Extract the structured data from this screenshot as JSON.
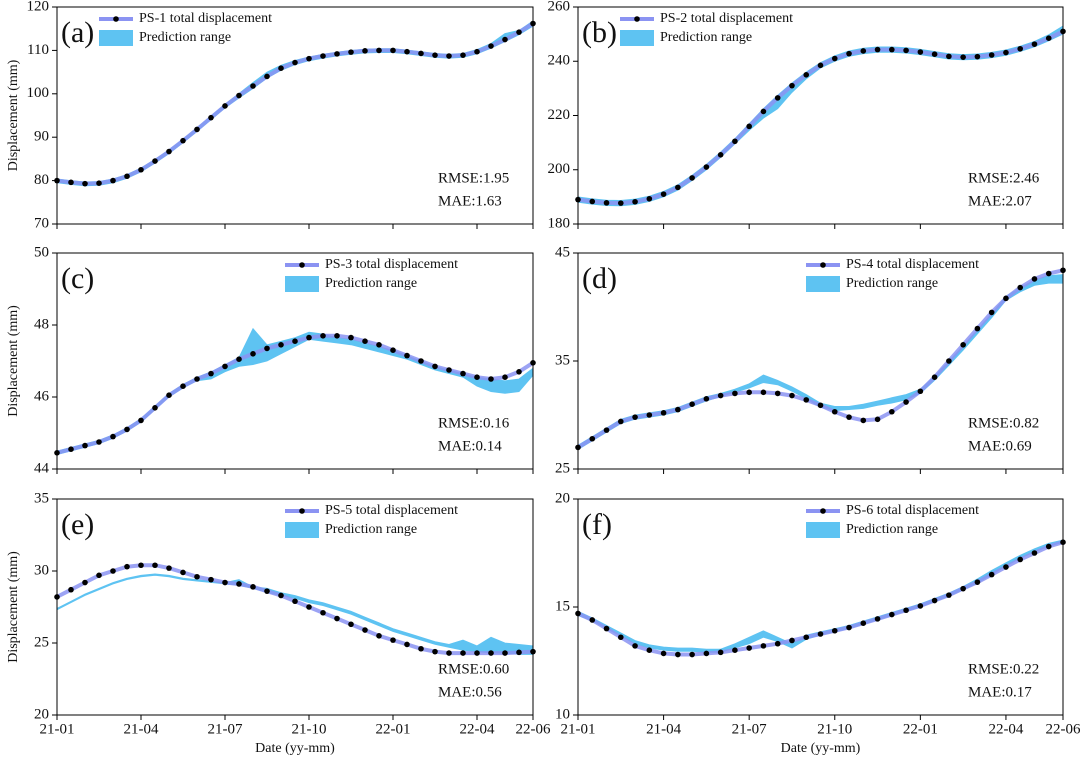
{
  "chart_data": [
    {
      "type": "line",
      "panel_label": "(a)",
      "ylabel": "Displacement (mm)",
      "legend": "upper left",
      "ylim": [
        70,
        120
      ],
      "yticks": [
        70,
        80,
        90,
        100,
        110,
        120
      ],
      "xlim": [
        0,
        17
      ],
      "xticks": [
        0,
        3,
        6,
        9,
        12,
        15,
        17
      ],
      "x": [
        0,
        0.5,
        1,
        1.5,
        2,
        2.5,
        3,
        3.5,
        4,
        4.5,
        5,
        5.5,
        6,
        6.5,
        7,
        7.5,
        8,
        8.5,
        9,
        9.5,
        10,
        10.5,
        11,
        11.5,
        12,
        12.5,
        13,
        13.5,
        14,
        14.5,
        15,
        15.5,
        16,
        16.5,
        17
      ],
      "series": [
        {
          "name": "PS-1 total displacement",
          "color": "#8b93f2",
          "values": [
            80,
            79.6,
            79.3,
            79.4,
            80,
            81,
            82.5,
            84.5,
            86.7,
            89.2,
            91.8,
            94.5,
            97.2,
            99.6,
            101.8,
            104,
            105.9,
            107.2,
            108.1,
            108.7,
            109.2,
            109.6,
            109.9,
            110,
            110,
            109.7,
            109.3,
            108.9,
            108.7,
            108.9,
            109.7,
            111,
            112.5,
            114.2,
            116.2
          ]
        }
      ],
      "range": {
        "name": "Prediction range",
        "color": "#5ec3f2",
        "lower": [
          79.5,
          79.1,
          78.8,
          78.9,
          79.5,
          80.5,
          82,
          84,
          86.2,
          88.7,
          91.3,
          94,
          96.7,
          99,
          101.2,
          103.6,
          105.4,
          106.7,
          107.6,
          108.2,
          108.7,
          109.1,
          109.4,
          109.5,
          109.5,
          109.2,
          108.8,
          108.4,
          108.2,
          108.4,
          109.2,
          110.5,
          112,
          113.6,
          115.6
        ],
        "upper": [
          80.4,
          80,
          79.7,
          79.8,
          80.4,
          81.4,
          82.9,
          84.9,
          87.1,
          89.6,
          92.2,
          94.9,
          97.6,
          100.1,
          102.6,
          105,
          106.6,
          107.7,
          108.5,
          109.1,
          109.6,
          110,
          110.3,
          110.4,
          110.4,
          110.1,
          109.7,
          109.3,
          109.1,
          109.3,
          110.2,
          111.6,
          113.9,
          114.6,
          116.8
        ]
      },
      "annotations": [
        "RMSE:1.95",
        "MAE:1.63"
      ]
    },
    {
      "type": "line",
      "panel_label": "(b)",
      "legend": "upper left",
      "ylim": [
        180,
        260
      ],
      "yticks": [
        180,
        200,
        220,
        240,
        260
      ],
      "xlim": [
        0,
        17
      ],
      "xticks": [
        0,
        3,
        6,
        9,
        12,
        15,
        17
      ],
      "x": [
        0,
        0.5,
        1,
        1.5,
        2,
        2.5,
        3,
        3.5,
        4,
        4.5,
        5,
        5.5,
        6,
        6.5,
        7,
        7.5,
        8,
        8.5,
        9,
        9.5,
        10,
        10.5,
        11,
        11.5,
        12,
        12.5,
        13,
        13.5,
        14,
        14.5,
        15,
        15.5,
        16,
        16.5,
        17
      ],
      "series": [
        {
          "name": "PS-2 total displacement",
          "color": "#8b93f2",
          "values": [
            189,
            188.3,
            187.8,
            187.7,
            188.2,
            189.3,
            191,
            193.5,
            197,
            201,
            205.5,
            210.5,
            216,
            221.5,
            226.5,
            231,
            235,
            238.5,
            241,
            242.8,
            243.8,
            244.3,
            244.3,
            244,
            243.4,
            242.6,
            241.8,
            241.5,
            241.7,
            242.3,
            243.2,
            244.6,
            246.3,
            248.5,
            251
          ]
        }
      ],
      "range": {
        "name": "Prediction range",
        "color": "#5ec3f2",
        "lower": [
          188,
          187.3,
          186.8,
          186.7,
          187.2,
          188.3,
          190,
          192.5,
          196,
          200,
          204.5,
          209.5,
          214.5,
          219,
          222.5,
          228.5,
          233.5,
          237.5,
          240,
          241.8,
          242.8,
          243.3,
          243.3,
          243,
          242.4,
          241.6,
          240.8,
          240.5,
          240.7,
          241.3,
          242.2,
          243.6,
          245.3,
          247.5,
          250
        ],
        "upper": [
          190,
          189.3,
          188.8,
          188.7,
          189.2,
          190.3,
          192,
          194.5,
          198,
          202,
          206.5,
          211.5,
          217,
          222.5,
          227.5,
          232,
          236,
          239.5,
          242,
          243.8,
          244.8,
          245.3,
          245.3,
          245,
          244.4,
          243.6,
          242.8,
          242.5,
          242.7,
          243.3,
          244.2,
          245.6,
          247.3,
          249.8,
          253
        ]
      },
      "annotations": [
        "RMSE:2.46",
        "MAE:2.07"
      ]
    },
    {
      "type": "line",
      "panel_label": "(c)",
      "ylabel": "Displacement (mm)",
      "legend": "upper center",
      "ylim": [
        44,
        50
      ],
      "yticks": [
        44,
        46,
        48,
        50
      ],
      "xlim": [
        0,
        17
      ],
      "xticks": [
        0,
        3,
        6,
        9,
        12,
        15,
        17
      ],
      "x": [
        0,
        0.5,
        1,
        1.5,
        2,
        2.5,
        3,
        3.5,
        4,
        4.5,
        5,
        5.5,
        6,
        6.5,
        7,
        7.5,
        8,
        8.5,
        9,
        9.5,
        10,
        10.5,
        11,
        11.5,
        12,
        12.5,
        13,
        13.5,
        14,
        14.5,
        15,
        15.5,
        16,
        16.5,
        17
      ],
      "series": [
        {
          "name": "PS-3 total displacement",
          "color": "#8b93f2",
          "values": [
            44.45,
            44.55,
            44.65,
            44.75,
            44.9,
            45.1,
            45.35,
            45.7,
            46.05,
            46.3,
            46.5,
            46.65,
            46.85,
            47.05,
            47.2,
            47.35,
            47.45,
            47.55,
            47.65,
            47.7,
            47.7,
            47.65,
            47.55,
            47.45,
            47.3,
            47.15,
            47,
            46.85,
            46.75,
            46.65,
            46.55,
            46.5,
            46.55,
            46.7,
            46.95
          ]
        }
      ],
      "range": {
        "name": "Prediction range",
        "color": "#5ec3f2",
        "lower": [
          44.4,
          44.5,
          44.6,
          44.7,
          44.85,
          45.05,
          45.3,
          45.65,
          46,
          46.25,
          46.45,
          46.5,
          46.7,
          46.85,
          46.9,
          47,
          47.2,
          47.4,
          47.6,
          47.55,
          47.5,
          47.45,
          47.35,
          47.25,
          47.15,
          47.05,
          46.9,
          46.75,
          46.65,
          46.55,
          46.3,
          46.15,
          46.1,
          46.15,
          46.6
        ],
        "upper": [
          44.5,
          44.6,
          44.7,
          44.8,
          44.95,
          45.15,
          45.4,
          45.75,
          46.1,
          46.35,
          46.55,
          46.7,
          46.9,
          47.1,
          47.9,
          47.45,
          47.55,
          47.65,
          47.8,
          47.75,
          47.65,
          47.6,
          47.5,
          47.4,
          47.3,
          47.15,
          47,
          46.85,
          46.75,
          46.65,
          46.55,
          46.5,
          46.45,
          46.5,
          46.8
        ]
      },
      "annotations": [
        "RMSE:0.16",
        "MAE:0.14"
      ]
    },
    {
      "type": "line",
      "panel_label": "(d)",
      "legend": "upper center",
      "ylim": [
        25,
        45
      ],
      "yticks": [
        25,
        35,
        45
      ],
      "xlim": [
        0,
        17
      ],
      "xticks": [
        0,
        3,
        6,
        9,
        12,
        15,
        17
      ],
      "x": [
        0,
        0.5,
        1,
        1.5,
        2,
        2.5,
        3,
        3.5,
        4,
        4.5,
        5,
        5.5,
        6,
        6.5,
        7,
        7.5,
        8,
        8.5,
        9,
        9.5,
        10,
        10.5,
        11,
        11.5,
        12,
        12.5,
        13,
        13.5,
        14,
        14.5,
        15,
        15.5,
        16,
        16.5,
        17
      ],
      "series": [
        {
          "name": "PS-4 total displacement",
          "color": "#8b93f2",
          "values": [
            27,
            27.8,
            28.6,
            29.4,
            29.8,
            30,
            30.2,
            30.5,
            31,
            31.5,
            31.8,
            32,
            32.1,
            32.1,
            32,
            31.8,
            31.4,
            30.9,
            30.3,
            29.8,
            29.5,
            29.6,
            30.3,
            31.2,
            32.2,
            33.5,
            35,
            36.5,
            38,
            39.5,
            40.8,
            41.8,
            42.6,
            43.1,
            43.4
          ]
        }
      ],
      "range": {
        "name": "Prediction range",
        "color": "#5ec3f2",
        "lower": [
          26.8,
          27.6,
          28.4,
          29.2,
          29.6,
          29.8,
          30,
          30.3,
          30.8,
          31.3,
          31.7,
          32.1,
          32.5,
          33,
          32.8,
          32.2,
          31.5,
          30.7,
          30.4,
          30.5,
          30.6,
          30.9,
          31.1,
          31.4,
          32,
          33.2,
          34.6,
          36,
          37.5,
          39,
          40.6,
          41.4,
          42,
          42.2,
          42.2
        ],
        "upper": [
          27.2,
          28,
          28.8,
          29.6,
          30,
          30.2,
          30.4,
          30.7,
          31.2,
          31.7,
          32,
          32.4,
          32.9,
          33.7,
          33.2,
          32.6,
          31.9,
          31.1,
          30.8,
          30.8,
          31,
          31.3,
          31.6,
          31.9,
          32.4,
          33.6,
          35,
          36.4,
          37.9,
          39.4,
          41,
          41.8,
          42.5,
          42.9,
          43
        ]
      },
      "annotations": [
        "RMSE:0.82",
        "MAE:0.69"
      ]
    },
    {
      "type": "line",
      "panel_label": "(e)",
      "ylabel": "Displacement (mm)",
      "xlabel": "Date (yy-mm)",
      "legend": "upper center",
      "ylim": [
        20,
        35
      ],
      "yticks": [
        20,
        25,
        30,
        35
      ],
      "xlim": [
        0,
        17
      ],
      "xticks": [
        {
          "value": 0,
          "label": "21-01"
        },
        {
          "value": 3,
          "label": "21-04"
        },
        {
          "value": 6,
          "label": "21-07"
        },
        {
          "value": 9,
          "label": "21-10"
        },
        {
          "value": 12,
          "label": "22-01"
        },
        {
          "value": 15,
          "label": "22-04"
        },
        {
          "value": 17,
          "label": "22-06"
        }
      ],
      "x": [
        0,
        0.5,
        1,
        1.5,
        2,
        2.5,
        3,
        3.5,
        4,
        4.5,
        5,
        5.5,
        6,
        6.5,
        7,
        7.5,
        8,
        8.5,
        9,
        9.5,
        10,
        10.5,
        11,
        11.5,
        12,
        12.5,
        13,
        13.5,
        14,
        14.5,
        15,
        15.5,
        16,
        16.5,
        17
      ],
      "series": [
        {
          "name": "PS-5 total displacement",
          "color": "#8b93f2",
          "values": [
            28.2,
            28.7,
            29.2,
            29.7,
            30,
            30.3,
            30.4,
            30.4,
            30.2,
            29.9,
            29.6,
            29.4,
            29.2,
            29.1,
            28.9,
            28.6,
            28.3,
            27.9,
            27.5,
            27.1,
            26.7,
            26.3,
            25.9,
            25.5,
            25.2,
            24.9,
            24.6,
            24.4,
            24.3,
            24.3,
            24.3,
            24.3,
            24.3,
            24.35,
            24.4
          ]
        }
      ],
      "range": {
        "name": "Prediction range",
        "color": "#5ec3f2",
        "lower": [
          27.3,
          27.8,
          28.3,
          28.7,
          29.1,
          29.4,
          29.6,
          29.7,
          29.6,
          29.4,
          29.3,
          29.2,
          29.1,
          29,
          28.8,
          28.5,
          28.3,
          28.1,
          27.8,
          27.6,
          27.3,
          27,
          26.6,
          26.2,
          25.8,
          25.5,
          25.2,
          24.9,
          24.7,
          24.5,
          24.4,
          24.3,
          24.3,
          24.2,
          24.2
        ],
        "upper": [
          27.4,
          27.9,
          28.4,
          28.8,
          29.2,
          29.5,
          29.7,
          29.8,
          29.7,
          29.5,
          29.4,
          29.3,
          29.2,
          29.4,
          28.9,
          28.8,
          28.5,
          28.3,
          28,
          27.8,
          27.5,
          27.2,
          26.8,
          26.4,
          26,
          25.7,
          25.4,
          25.1,
          24.9,
          25.2,
          24.8,
          25.4,
          25,
          24.9,
          24.8
        ]
      },
      "annotations": [
        "RMSE:0.60",
        "MAE:0.56"
      ]
    },
    {
      "type": "line",
      "panel_label": "(f)",
      "xlabel": "Date (yy-mm)",
      "legend": "upper center",
      "ylim": [
        10,
        20
      ],
      "yticks": [
        10,
        15,
        20
      ],
      "xlim": [
        0,
        17
      ],
      "xticks": [
        {
          "value": 0,
          "label": "21-01"
        },
        {
          "value": 3,
          "label": "21-04"
        },
        {
          "value": 6,
          "label": "21-07"
        },
        {
          "value": 9,
          "label": "21-10"
        },
        {
          "value": 12,
          "label": "22-01"
        },
        {
          "value": 15,
          "label": "22-04"
        },
        {
          "value": 17,
          "label": "22-06"
        }
      ],
      "x": [
        0,
        0.5,
        1,
        1.5,
        2,
        2.5,
        3,
        3.5,
        4,
        4.5,
        5,
        5.5,
        6,
        6.5,
        7,
        7.5,
        8,
        8.5,
        9,
        9.5,
        10,
        10.5,
        11,
        11.5,
        12,
        12.5,
        13,
        13.5,
        14,
        14.5,
        15,
        15.5,
        16,
        16.5,
        17
      ],
      "series": [
        {
          "name": "PS-6 total displacement",
          "color": "#8b93f2",
          "values": [
            14.7,
            14.4,
            14,
            13.6,
            13.2,
            13,
            12.85,
            12.8,
            12.8,
            12.85,
            12.9,
            13,
            13.1,
            13.2,
            13.3,
            13.45,
            13.6,
            13.75,
            13.9,
            14.05,
            14.25,
            14.45,
            14.65,
            14.85,
            15.05,
            15.3,
            15.55,
            15.85,
            16.15,
            16.5,
            16.85,
            17.2,
            17.5,
            17.8,
            18
          ]
        }
      ],
      "range": {
        "name": "Prediction range",
        "color": "#5ec3f2",
        "lower": [
          14.6,
          14.35,
          14,
          13.65,
          13.3,
          13.1,
          13,
          12.95,
          12.95,
          12.9,
          12.9,
          13.1,
          13.3,
          13.6,
          13.4,
          13.1,
          13.5,
          13.7,
          13.85,
          14,
          14.2,
          14.4,
          14.6,
          14.8,
          15,
          15.25,
          15.5,
          15.8,
          16.1,
          16.5,
          16.9,
          17.25,
          17.55,
          17.8,
          18
        ],
        "upper": [
          14.8,
          14.5,
          14.15,
          13.8,
          13.45,
          13.25,
          13.15,
          13.1,
          13.1,
          13.05,
          13.05,
          13.3,
          13.6,
          13.9,
          13.6,
          13.3,
          13.7,
          13.85,
          14,
          14.15,
          14.35,
          14.55,
          14.75,
          14.95,
          15.15,
          15.4,
          15.65,
          15.95,
          16.3,
          16.7,
          17.05,
          17.4,
          17.7,
          17.95,
          18.1
        ]
      },
      "annotations": [
        "RMSE:0.22",
        "MAE:0.17"
      ]
    }
  ]
}
